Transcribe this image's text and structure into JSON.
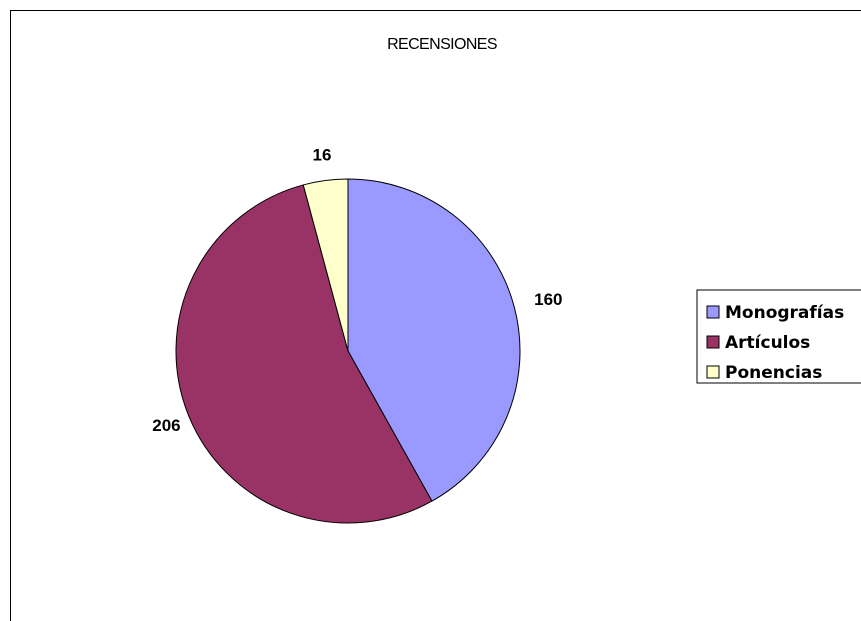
{
  "chart_data": {
    "type": "pie",
    "title": "RECENSIONES",
    "categories": [
      "Monografías",
      "Artículos",
      "Ponencias"
    ],
    "values": [
      160,
      206,
      16
    ],
    "colors": [
      "#9999ff",
      "#993366",
      "#ffffcc"
    ],
    "legend_position": "right"
  }
}
